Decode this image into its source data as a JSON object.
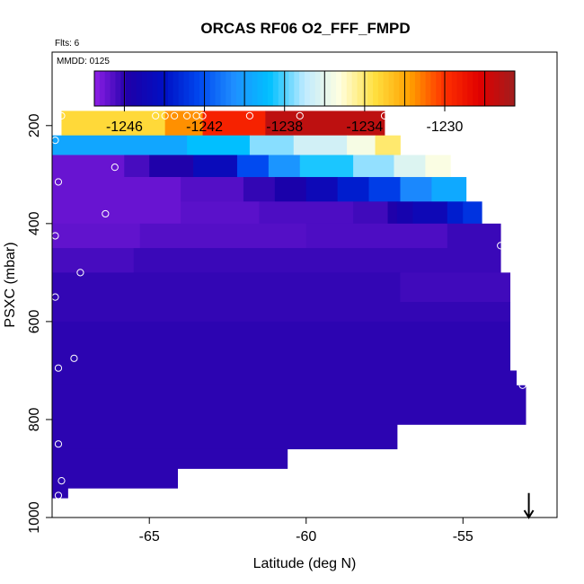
{
  "chart_data": {
    "type": "heatmap",
    "title": "ORCAS RF06 O2_FFF_FMPD",
    "flights_note": "Flts: 6",
    "date_note": "MMDD: 0125",
    "xlabel": "Latitude (deg N)",
    "ylabel": "PSXC (mbar)",
    "xlim": [
      -68.1,
      -52.0
    ],
    "ylim": [
      1000,
      50
    ],
    "y_reversed": true,
    "x_ticks": [
      -65,
      -60,
      -55
    ],
    "x_tick_labels": [
      "-65",
      "-60",
      "-55"
    ],
    "y_ticks": [
      200,
      400,
      600,
      800,
      1000
    ],
    "y_tick_labels": [
      "200",
      "400",
      "600",
      "800",
      "1000"
    ],
    "grid": false,
    "legend": "colorbar-top",
    "colorbar": {
      "range": [
        -1247.5,
        -1226.5
      ],
      "ticks": [
        -1246,
        -1242,
        -1238,
        -1234,
        -1230
      ],
      "tick_labels": [
        "-1246",
        "-1242",
        "-1238",
        "-1234",
        "-1230"
      ],
      "colors": [
        "#8f1fe6",
        "#1c00a8",
        "#0010c4",
        "#0048f0",
        "#1f90ff",
        "#00c0ff",
        "#bfeaff",
        "#ffffe0",
        "#ffe040",
        "#ffa000",
        "#ff3000",
        "#e00000",
        "#a01e1e"
      ]
    },
    "bands": [
      {
        "p_top": 170,
        "p_bottom": 220,
        "x_start": -67.8,
        "x_end": -57.5,
        "segments": [
          {
            "x": -67.8,
            "v": -1233.3
          },
          {
            "x": -64.5,
            "v": -1231.5
          },
          {
            "x": -63.3,
            "v": -1229.5
          },
          {
            "x": -61.3,
            "v": -1227.3
          }
        ]
      },
      {
        "p_top": 220,
        "p_bottom": 260,
        "x_start": -68.1,
        "x_end": -57.0,
        "segments": [
          {
            "x": -68.1,
            "v": -1239.7
          },
          {
            "x": -63.8,
            "v": -1238.8
          },
          {
            "x": -61.8,
            "v": -1237.5
          },
          {
            "x": -60.4,
            "v": -1236.5
          },
          {
            "x": -58.7,
            "v": -1235.5
          },
          {
            "x": -57.8,
            "v": -1234.0
          }
        ]
      },
      {
        "p_top": 260,
        "p_bottom": 305,
        "x_start": -68.1,
        "x_end": -55.4,
        "segments": [
          {
            "x": -68.1,
            "v": -1246.9
          },
          {
            "x": -65.8,
            "v": -1246.4
          },
          {
            "x": -65.0,
            "v": -1245.8
          },
          {
            "x": -63.6,
            "v": -1244.6
          },
          {
            "x": -62.2,
            "v": -1242.2
          },
          {
            "x": -61.2,
            "v": -1240.3
          },
          {
            "x": -60.2,
            "v": -1238.5
          },
          {
            "x": -58.5,
            "v": -1237.4
          },
          {
            "x": -57.2,
            "v": -1236.2
          },
          {
            "x": -56.2,
            "v": -1235.4
          }
        ]
      },
      {
        "p_top": 305,
        "p_bottom": 355,
        "x_start": -68.1,
        "x_end": -54.9,
        "segments": [
          {
            "x": -68.1,
            "v": -1246.9
          },
          {
            "x": -64.0,
            "v": -1246.6
          },
          {
            "x": -62.0,
            "v": -1246.1
          },
          {
            "x": -61.0,
            "v": -1245.6
          },
          {
            "x": -60.0,
            "v": -1244.8
          },
          {
            "x": -59.0,
            "v": -1243.6
          },
          {
            "x": -58.0,
            "v": -1242.6
          },
          {
            "x": -57.0,
            "v": -1240.7
          },
          {
            "x": -56.0,
            "v": -1239.6
          }
        ]
      },
      {
        "p_top": 355,
        "p_bottom": 400,
        "x_start": -68.1,
        "x_end": -54.4,
        "segments": [
          {
            "x": -68.1,
            "v": -1246.9
          },
          {
            "x": -64.0,
            "v": -1246.7
          },
          {
            "x": -61.5,
            "v": -1246.5
          },
          {
            "x": -58.5,
            "v": -1246.3
          },
          {
            "x": -57.4,
            "v": -1245.8
          },
          {
            "x": -57.1,
            "v": -1245.4
          },
          {
            "x": -56.6,
            "v": -1244.9
          },
          {
            "x": -55.5,
            "v": -1243.6
          },
          {
            "x": -55.0,
            "v": -1242.9
          }
        ]
      },
      {
        "p_top": 400,
        "p_bottom": 450,
        "x_start": -68.1,
        "x_end": -53.8,
        "segments": [
          {
            "x": -68.1,
            "v": -1246.8
          },
          {
            "x": -65.3,
            "v": -1246.6
          },
          {
            "x": -60.0,
            "v": -1246.5
          },
          {
            "x": -55.5,
            "v": -1246.2
          }
        ]
      },
      {
        "p_top": 450,
        "p_bottom": 500,
        "x_start": -68.1,
        "x_end": -53.8,
        "segments": [
          {
            "x": -68.1,
            "v": -1246.4
          },
          {
            "x": -65.5,
            "v": -1246.2
          }
        ]
      },
      {
        "p_top": 500,
        "p_bottom": 560,
        "x_start": -68.1,
        "x_end": -53.5,
        "segments": [
          {
            "x": -68.1,
            "v": -1246.1
          },
          {
            "x": -57.0,
            "v": -1246.3
          }
        ]
      },
      {
        "p_top": 560,
        "p_bottom": 600,
        "x_start": -68.1,
        "x_end": -53.5,
        "segments": [
          {
            "x": -68.1,
            "v": -1246.1
          }
        ]
      },
      {
        "p_top": 600,
        "p_bottom": 700,
        "x_start": -68.1,
        "x_end": -53.5,
        "segments": [
          {
            "x": -68.1,
            "v": -1246.0
          }
        ]
      },
      {
        "p_top": 700,
        "p_bottom": 730,
        "x_start": -68.1,
        "x_end": -53.3,
        "segments": [
          {
            "x": -68.1,
            "v": -1246.0
          }
        ]
      },
      {
        "p_top": 730,
        "p_bottom": 810,
        "x_start": -68.1,
        "x_end": -53.0,
        "segments": [
          {
            "x": -68.1,
            "v": -1246.0
          }
        ]
      },
      {
        "p_top": 810,
        "p_bottom": 860,
        "x_start": -68.1,
        "x_end": -57.1,
        "segments": [
          {
            "x": -68.1,
            "v": -1246.0
          }
        ]
      },
      {
        "p_top": 860,
        "p_bottom": 900,
        "x_start": -68.1,
        "x_end": -60.6,
        "segments": [
          {
            "x": -68.1,
            "v": -1246.0
          }
        ]
      },
      {
        "p_top": 900,
        "p_bottom": 940,
        "x_start": -68.1,
        "x_end": -64.1,
        "segments": [
          {
            "x": -68.1,
            "v": -1246.0
          }
        ]
      },
      {
        "p_top": 940,
        "p_bottom": 960,
        "x_start": -68.1,
        "x_end": -67.6,
        "segments": [
          {
            "x": -68.1,
            "v": -1246.0
          }
        ]
      }
    ],
    "sample_points": [
      {
        "lat": -67.8,
        "p": 180
      },
      {
        "lat": -64.8,
        "p": 180
      },
      {
        "lat": -64.5,
        "p": 180
      },
      {
        "lat": -64.2,
        "p": 180
      },
      {
        "lat": -63.8,
        "p": 180
      },
      {
        "lat": -63.5,
        "p": 180
      },
      {
        "lat": -63.3,
        "p": 180
      },
      {
        "lat": -61.8,
        "p": 180
      },
      {
        "lat": -60.2,
        "p": 180
      },
      {
        "lat": -57.5,
        "p": 180
      },
      {
        "lat": -68.0,
        "p": 230
      },
      {
        "lat": -66.1,
        "p": 285
      },
      {
        "lat": -67.9,
        "p": 315
      },
      {
        "lat": -66.4,
        "p": 380
      },
      {
        "lat": -68.0,
        "p": 425
      },
      {
        "lat": -53.8,
        "p": 445
      },
      {
        "lat": -67.2,
        "p": 500
      },
      {
        "lat": -68.0,
        "p": 550
      },
      {
        "lat": -67.4,
        "p": 675
      },
      {
        "lat": -67.9,
        "p": 695
      },
      {
        "lat": -53.1,
        "p": 730
      },
      {
        "lat": -67.9,
        "p": 850
      },
      {
        "lat": -67.8,
        "p": 925
      },
      {
        "lat": -67.9,
        "p": 955
      }
    ],
    "arrow_marker": {
      "lat": -52.9,
      "p_from": 950,
      "p_to": 1000
    }
  }
}
